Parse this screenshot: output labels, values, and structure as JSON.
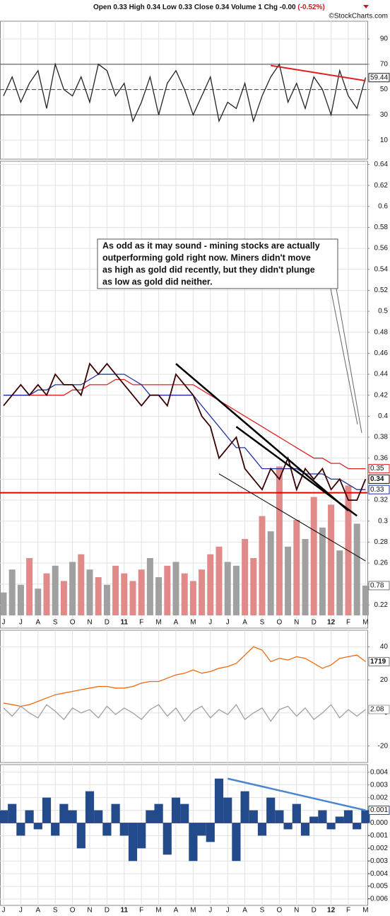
{
  "header": {
    "quote": "Open 0.33 High 0.34 Low 0.33 Close 0.34 Volume 1 Chg -0.00",
    "change": " (-0.52%)",
    "source": "©StockCharts.com"
  },
  "chart_data": [
    {
      "type": "line",
      "categories": [
        "J",
        null,
        "J",
        null,
        "A",
        null,
        "S",
        null,
        "O",
        null,
        "N",
        null,
        "D",
        null,
        "11",
        null,
        "F",
        null,
        "M",
        null,
        "A",
        null,
        "M",
        null,
        "J",
        null,
        "J",
        null,
        "A",
        null,
        "S",
        null,
        "O",
        null,
        "N",
        null,
        "D",
        null,
        "12",
        null,
        "F",
        null,
        "M"
      ],
      "ylim": [
        -5,
        104
      ],
      "yticks": [
        10,
        30,
        50,
        70,
        90
      ],
      "levels": [
        {
          "value": 30,
          "dash": false
        },
        {
          "value": 50,
          "dash": true
        },
        {
          "value": 70,
          "dash": false
        }
      ],
      "series": [
        {
          "color": "#222222",
          "values": [
            45,
            60,
            40,
            55,
            65,
            35,
            70,
            50,
            45,
            60,
            40,
            70,
            65,
            45,
            55,
            25,
            40,
            60,
            30,
            55,
            65,
            50,
            30,
            45,
            60,
            25,
            40,
            35,
            55,
            25,
            45,
            60,
            70,
            40,
            55,
            35,
            60,
            50,
            30,
            65,
            45,
            35,
            59.44
          ]
        }
      ],
      "trend_lines": [
        {
          "color": "#e02020",
          "width": 2,
          "points": [
            [
              31,
              69
            ],
            [
              42,
              57
            ]
          ]
        }
      ]
    },
    {
      "type": "line",
      "categories": [
        "J",
        null,
        "J",
        null,
        "A",
        null,
        "S",
        null,
        "O",
        null,
        "N",
        null,
        "D",
        null,
        "11",
        null,
        "F",
        null,
        "M",
        null,
        "A",
        null,
        "M",
        null,
        "J",
        null,
        "J",
        null,
        "A",
        null,
        "S",
        null,
        "O",
        null,
        "N",
        null,
        "D",
        null,
        "12",
        null,
        "F",
        null,
        "M"
      ],
      "ylim": [
        0.198,
        0.643
      ],
      "yticks": [
        0.22,
        0.24,
        0.26,
        0.28,
        0.3,
        0.32,
        0.34,
        0.36,
        0.38,
        0.4,
        0.42,
        0.44,
        0.46,
        0.48,
        0.5,
        0.52,
        0.54,
        0.56,
        0.58,
        0.6,
        0.62,
        0.64
      ],
      "series": [
        {
          "color": "#e02020",
          "values": [
            0.42,
            0.42,
            0.42,
            0.42,
            0.42,
            0.42,
            0.42,
            0.42,
            0.425,
            0.425,
            0.43,
            0.43,
            0.43,
            0.435,
            0.435,
            0.43,
            0.43,
            0.43,
            0.43,
            0.43,
            0.43,
            0.43,
            0.43,
            0.425,
            0.42,
            0.415,
            0.41,
            0.405,
            0.4,
            0.395,
            0.39,
            0.385,
            0.38,
            0.375,
            0.37,
            0.365,
            0.36,
            0.36,
            0.355,
            0.355,
            0.35,
            0.35,
            0.35
          ]
        },
        {
          "color": "#2030a0",
          "values": [
            0.42,
            0.42,
            0.42,
            0.42,
            0.425,
            0.425,
            0.43,
            0.43,
            0.43,
            0.43,
            0.435,
            0.44,
            0.44,
            0.44,
            0.44,
            0.435,
            0.43,
            0.42,
            0.42,
            0.42,
            0.42,
            0.42,
            0.42,
            0.41,
            0.4,
            0.39,
            0.38,
            0.37,
            0.37,
            0.36,
            0.35,
            0.35,
            0.35,
            0.35,
            0.35,
            0.345,
            0.345,
            0.345,
            0.34,
            0.34,
            0.335,
            0.33,
            0.33
          ]
        },
        {
          "color": "#3a0000",
          "values": [
            0.41,
            0.42,
            0.43,
            0.42,
            0.43,
            0.42,
            0.44,
            0.43,
            0.43,
            0.42,
            0.45,
            0.44,
            0.45,
            0.44,
            0.43,
            0.42,
            0.41,
            0.42,
            0.42,
            0.41,
            0.44,
            0.43,
            0.42,
            0.4,
            0.39,
            0.36,
            0.37,
            0.38,
            0.35,
            0.34,
            0.33,
            0.35,
            0.34,
            0.36,
            0.33,
            0.35,
            0.34,
            0.35,
            0.33,
            0.34,
            0.32,
            0.32,
            0.34
          ]
        }
      ],
      "hline": {
        "value": 0.327,
        "color": "#e00000"
      },
      "trend_lines": [
        {
          "color": "#000000",
          "width": 2.5,
          "points": [
            [
              20,
              0.45
            ],
            [
              40,
              0.31
            ]
          ]
        },
        {
          "color": "#000000",
          "width": 2.5,
          "points": [
            [
              27,
              0.39
            ],
            [
              41,
              0.305
            ]
          ]
        },
        {
          "color": "#000000",
          "width": 1,
          "points": [
            [
              25,
              0.345
            ],
            [
              42,
              0.262
            ]
          ]
        }
      ],
      "annotation": [
        "As odd as it may sound - mining stocks are actually",
        "outperforming gold right now. Miners didn't move",
        "as high as gold did recently, but they didn't plunge",
        "as low as gold did neither."
      ],
      "volume": {
        "y2lim": [
          0,
          4
        ],
        "up_color": "#a0a0a0",
        "down_color": "#e08a8a",
        "values": [
          0.6,
          1.2,
          0.8,
          1.5,
          0.7,
          1.1,
          1.3,
          0.9,
          1.4,
          1.6,
          1.2,
          1.0,
          0.8,
          1.3,
          1.1,
          0.9,
          1.2,
          1.5,
          1.0,
          1.3,
          1.4,
          1.1,
          0.9,
          1.2,
          1.6,
          1.8,
          1.4,
          1.3,
          2.0,
          1.5,
          2.6,
          2.2,
          3.9,
          1.8,
          2.5,
          2.0,
          3.1,
          2.3,
          2.9,
          1.7,
          3.4,
          2.4,
          0.78
        ]
      }
    },
    {
      "type": "line",
      "categories": [
        "J",
        null,
        "J",
        null,
        "A",
        null,
        "S",
        null,
        "O",
        null,
        "N",
        null,
        "D",
        null,
        "11",
        null,
        "F",
        null,
        "M",
        null,
        "A",
        null,
        "M",
        null,
        "J",
        null,
        "J",
        null,
        "A",
        null,
        "S",
        null,
        "O",
        null,
        "N",
        null,
        "D",
        null,
        "12",
        null,
        "F",
        null,
        "M"
      ],
      "ylim": [
        -30,
        50
      ],
      "yticks": [
        -20,
        0,
        20,
        40
      ],
      "series": [
        {
          "color": "#ee6a10",
          "last_label": "1719",
          "values": [
            6,
            5,
            4,
            5,
            7,
            9,
            11,
            12,
            13,
            14,
            15,
            16,
            16,
            15,
            15,
            16,
            18,
            19,
            19,
            21,
            23,
            24,
            26,
            24,
            25,
            27,
            28,
            30,
            35,
            40,
            38,
            31,
            33,
            32,
            34,
            33,
            30,
            27,
            29,
            33,
            34,
            35,
            31
          ]
        },
        {
          "color": "#a0a0a0",
          "values": [
            3,
            -2,
            4,
            0,
            -3,
            5,
            1,
            -4,
            3,
            0,
            2,
            -3,
            4,
            -1,
            3,
            0,
            -4,
            2,
            5,
            -2,
            3,
            -5,
            1,
            4,
            -3,
            2,
            -1,
            5,
            -4,
            0,
            3,
            -5,
            2,
            4,
            -2,
            3,
            -4,
            0,
            5,
            -3,
            2,
            -2,
            2.08
          ]
        }
      ]
    },
    {
      "type": "bar",
      "categories": [
        "J",
        null,
        "J",
        null,
        "A",
        null,
        "S",
        null,
        "O",
        null,
        "N",
        null,
        "D",
        null,
        "11",
        null,
        "F",
        null,
        "M",
        null,
        "A",
        null,
        "M",
        null,
        "J",
        null,
        "J",
        null,
        "A",
        null,
        "S",
        null,
        "O",
        null,
        "N",
        null,
        "D",
        null,
        "12",
        null,
        "F",
        null,
        "M"
      ],
      "ylim": [
        -0.0065,
        0.0046
      ],
      "yticks": [
        {
          "value": -0.006,
          "label": "-0.006"
        },
        {
          "value": -0.005,
          "label": "-0.005"
        },
        {
          "value": -0.004,
          "label": "-0.004"
        },
        {
          "value": -0.003,
          "label": "-0.003"
        },
        {
          "value": -0.002,
          "label": "-0.002"
        },
        {
          "value": -0.001,
          "label": "-0.001"
        },
        {
          "value": 0,
          "label": "0.000"
        },
        {
          "value": 0.001,
          "label": "0.001"
        },
        {
          "value": 0.002,
          "label": "0.002"
        },
        {
          "value": 0.003,
          "label": "0.003"
        },
        {
          "value": 0.004,
          "label": "0.004"
        }
      ],
      "color": "#234a8a",
      "values": [
        0.001,
        0.0015,
        -0.001,
        0.001,
        -0.0005,
        0.002,
        -0.001,
        0.0015,
        0.001,
        -0.002,
        0.0025,
        0.001,
        -0.001,
        0.0015,
        -0.001,
        -0.003,
        -0.002,
        0.001,
        0.0015,
        -0.0025,
        0.002,
        0.0015,
        -0.003,
        -0.001,
        -0.0015,
        0.0035,
        0.002,
        -0.003,
        0.0025,
        0.001,
        -0.001,
        0.002,
        0.001,
        -0.0005,
        0.0015,
        -0.001,
        0.0005,
        0.001,
        -0.0005,
        0.0005,
        0.001,
        -0.0005,
        0.001
      ],
      "trend_lines": [
        {
          "color": "#4a86d0",
          "width": 2.5,
          "points": [
            [
              26,
              0.0035
            ],
            [
              42,
              0.001
            ]
          ]
        }
      ]
    }
  ]
}
